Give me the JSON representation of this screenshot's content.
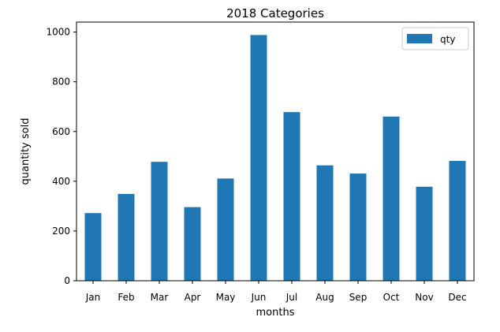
{
  "chart_data": {
    "type": "bar",
    "title": "2018 Categories",
    "xlabel": "months",
    "ylabel": "quantity sold",
    "categories": [
      "Jan",
      "Feb",
      "Mar",
      "Apr",
      "May",
      "Jun",
      "Jul",
      "Aug",
      "Sep",
      "Oct",
      "Nov",
      "Dec"
    ],
    "series": [
      {
        "name": "qty",
        "values": [
          272,
          349,
          478,
          296,
          411,
          988,
          678,
          464,
          431,
          660,
          378,
          482
        ],
        "color": "#1f77b4"
      }
    ],
    "ylim": [
      0,
      1040
    ],
    "yticks": [
      0,
      200,
      400,
      600,
      800,
      1000
    ],
    "grid": false,
    "legend_position": "top-right"
  }
}
